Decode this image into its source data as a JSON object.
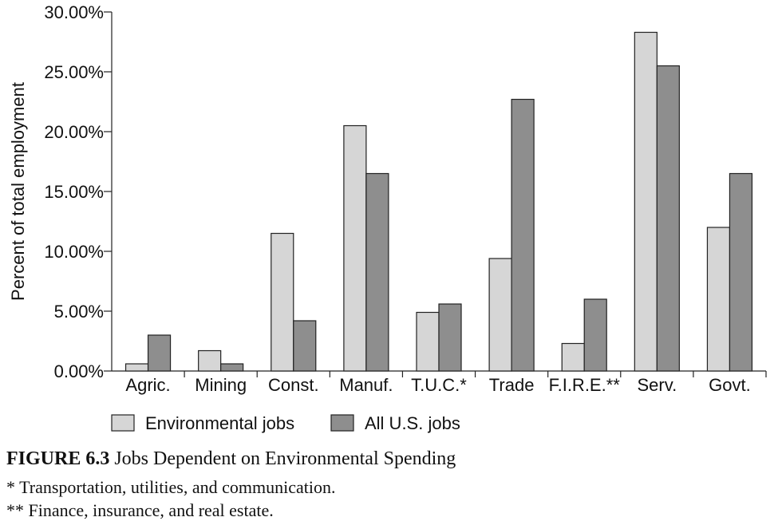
{
  "chart_data": {
    "type": "bar",
    "ylabel": "Percent of total employment",
    "ylim": [
      0,
      30
    ],
    "yticks": [
      "0.00%",
      "5.00%",
      "10.00%",
      "15.00%",
      "20.00%",
      "25.00%",
      "30.00%"
    ],
    "categories": [
      "Agric.",
      "Mining",
      "Const.",
      "Manuf.",
      "T.U.C.*",
      "Trade",
      "F.I.R.E.**",
      "Serv.",
      "Govt."
    ],
    "series": [
      {
        "name": "Environmental jobs",
        "color": "#d6d6d6",
        "values": [
          0.6,
          1.7,
          11.5,
          20.5,
          4.9,
          9.4,
          2.3,
          28.3,
          12.0
        ]
      },
      {
        "name": "All U.S. jobs",
        "color": "#8e8e8e",
        "values": [
          3.0,
          0.6,
          4.2,
          16.5,
          5.6,
          22.7,
          6.0,
          25.5,
          16.5
        ]
      }
    ],
    "legend": "bottom"
  },
  "caption": {
    "figure_label": "FIGURE 6.3",
    "title": "Jobs Dependent on Environmental Spending",
    "note1": "* Transportation, utilities, and communication.",
    "note2": "** Finance, insurance, and real estate."
  }
}
